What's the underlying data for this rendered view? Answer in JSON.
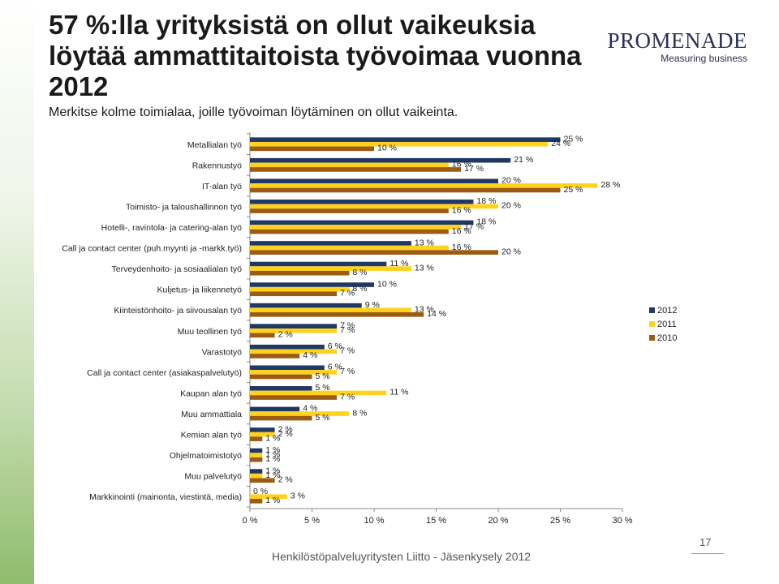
{
  "header": {
    "title": "57 %:lla yrityksistä on ollut vaikeuksia löytää ammattitaitoista työvoimaa vuonna 2012",
    "subtitle": "Merkitse kolme toimialaa, joille työvoiman löytäminen on ollut vaikeinta."
  },
  "logo": {
    "name": "PROMENADE",
    "tagline": "Measuring business"
  },
  "footer": {
    "text": "Henkilöstöpalveluyritysten Liitto - Jäsenkysely 2012",
    "page_number": "17"
  },
  "colors": {
    "series_2012": "#1f3864",
    "series_2011": "#ffd21f",
    "series_2010": "#9c5a12"
  },
  "chart_data": {
    "type": "bar",
    "orientation": "horizontal",
    "title": "",
    "xlabel": "",
    "ylabel": "",
    "xlim": [
      0,
      30
    ],
    "xticks": [
      "0 %",
      "5 %",
      "10 %",
      "15 %",
      "20 %",
      "25 %",
      "30 %"
    ],
    "categories": [
      "Metallialan työ",
      "Rakennustyö",
      "IT-alan työ",
      "Toimisto- ja taloushallinnon työ",
      "Hotelli-, ravintola- ja catering-alan työ",
      "Call ja contact center (puh.myynti ja -markk.työ)",
      "Terveydenhoito- ja sosiaalialan työ",
      "Kuljetus- ja liikennetyö",
      "Kiinteistönhoito- ja siivousalan työ",
      "Muu teollinen työ",
      "Varastotyö",
      "Call ja contact center (asiakaspalvelutyö)",
      "Kaupan alan työ",
      "Muu ammattiala",
      "Kemian alan työ",
      "Ohjelmatoimistotyö",
      "Muu palvelutyö",
      "Markkinointi (mainonta, viestintä, media)"
    ],
    "series": [
      {
        "name": "2012",
        "values": [
          25,
          21,
          20,
          18,
          18,
          13,
          11,
          10,
          9,
          7,
          6,
          6,
          5,
          4,
          2,
          1,
          1,
          0
        ]
      },
      {
        "name": "2011",
        "values": [
          24,
          16,
          28,
          20,
          17,
          16,
          13,
          8,
          13,
          7,
          7,
          7,
          11,
          8,
          2,
          1,
          1,
          3
        ]
      },
      {
        "name": "2010",
        "values": [
          10,
          17,
          25,
          16,
          16,
          20,
          8,
          7,
          14,
          2,
          4,
          5,
          7,
          5,
          1,
          1,
          2,
          1
        ]
      }
    ],
    "data_labels": [
      [
        "25 %",
        "24 %",
        "10 %"
      ],
      [
        "21 %",
        "16 %",
        "17 %"
      ],
      [
        "20 %",
        "28 %",
        "25 %"
      ],
      [
        "18 %",
        "20 %",
        "16 %"
      ],
      [
        "18 %",
        "17 %",
        "16 %"
      ],
      [
        "13 %",
        "16 %",
        "20 %"
      ],
      [
        "11 %",
        "13 %",
        "8 %"
      ],
      [
        "10 %",
        "8 %",
        "7 %"
      ],
      [
        "9 %",
        "13 %",
        "14 %"
      ],
      [
        "7 %",
        "7 %",
        "2 %"
      ],
      [
        "6 %",
        "7 %",
        "4 %"
      ],
      [
        "6 %",
        "7 %",
        "5 %"
      ],
      [
        "5 %",
        "11 %",
        "7 %"
      ],
      [
        "4 %",
        "8 %",
        "5 %"
      ],
      [
        "2 %",
        "2 %",
        "1 %"
      ],
      [
        "1 %",
        "1 %",
        "1 %"
      ],
      [
        "1 %",
        "1 %",
        "2 %"
      ],
      [
        "0 %",
        "3 %",
        "1 %"
      ]
    ],
    "legend": [
      "2012",
      "2011",
      "2010"
    ],
    "legend_position": "right",
    "grid": false
  }
}
